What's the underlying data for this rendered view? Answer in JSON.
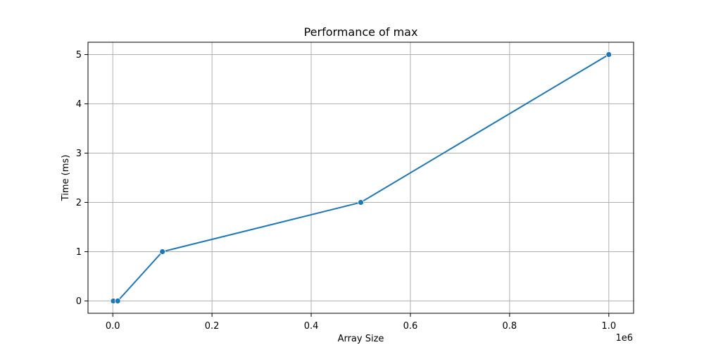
{
  "chart_data": {
    "type": "line",
    "title": "Performance of max",
    "xlabel": "Array Size",
    "ylabel": "Time (ms)",
    "x_offset_label": "1e6",
    "xlim": [
      -50000,
      1050000
    ],
    "ylim": [
      -0.25,
      5.25
    ],
    "x_ticks": [
      0,
      200000,
      400000,
      600000,
      800000,
      1000000
    ],
    "x_tick_labels": [
      "0.0",
      "0.2",
      "0.4",
      "0.6",
      "0.8",
      "1.0"
    ],
    "y_ticks": [
      0,
      1,
      2,
      3,
      4,
      5
    ],
    "y_tick_labels": [
      "0",
      "1",
      "2",
      "3",
      "4",
      "5"
    ],
    "grid": true,
    "series": [
      {
        "color": "#1f77b4",
        "x": [
          100,
          1000,
          10000,
          100000,
          500000,
          1000000
        ],
        "y": [
          0,
          0,
          0,
          1,
          2,
          5
        ]
      }
    ]
  }
}
